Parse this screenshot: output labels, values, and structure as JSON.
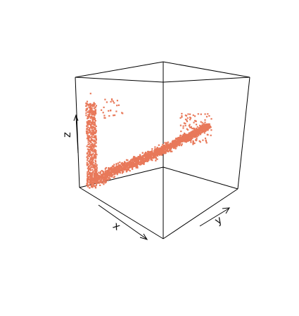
{
  "chart_data": {
    "type": "scatter",
    "projection": "3d-box",
    "title": "",
    "xlabel": "x",
    "ylabel": "y",
    "zlabel": "z",
    "point_color": "#e8795a",
    "box_color": "#000000",
    "grid": false,
    "legend": "none",
    "xlim": [
      0,
      1
    ],
    "ylim": [
      0,
      1
    ],
    "zlim": [
      0,
      1
    ],
    "cloud": {
      "point_count": 2600,
      "x_range": [
        0.0,
        0.2
      ],
      "y_range": [
        0.0,
        0.85
      ],
      "z_range": [
        0.0,
        0.85
      ]
    }
  }
}
